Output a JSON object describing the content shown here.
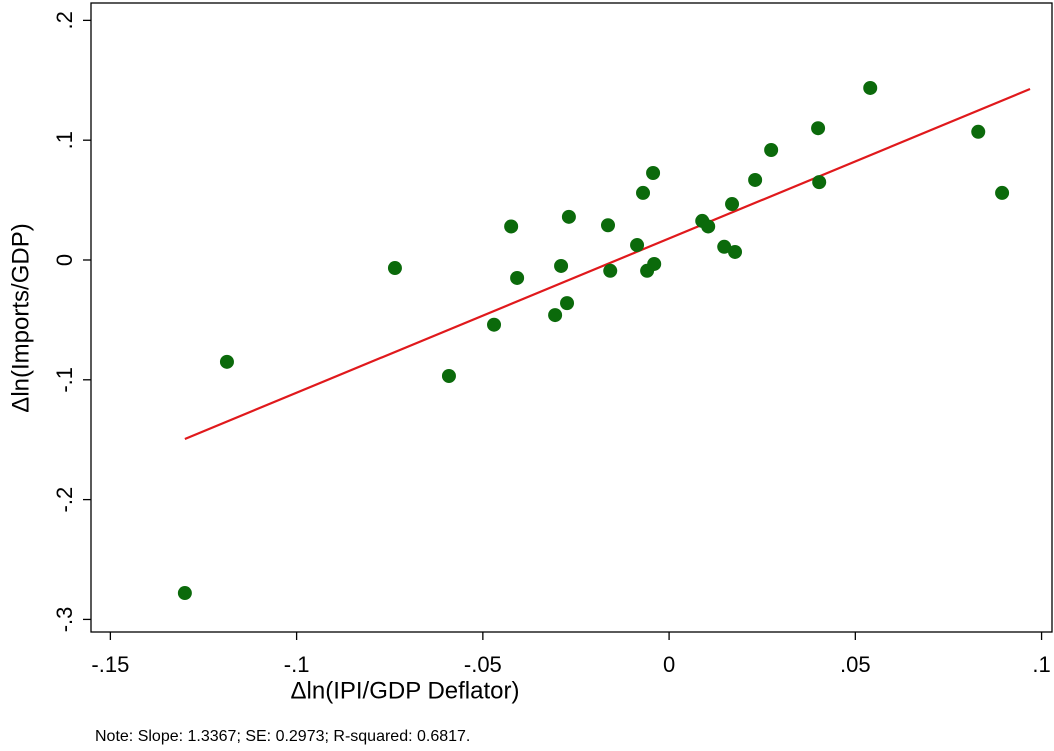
{
  "chart_data": {
    "type": "scatter",
    "xlabel": "Δln(IPI/GDP Deflator)",
    "ylabel": "Δln(Imports/GDP)",
    "note": "Note: Slope: 1.3367; SE: 0.2973; R-squared: 0.6817.",
    "x": [
      -0.13,
      -0.1187,
      -0.0736,
      -0.0591,
      -0.047,
      -0.0424,
      -0.0408,
      -0.0306,
      -0.029,
      -0.0274,
      -0.0269,
      -0.0164,
      -0.0158,
      -0.0086,
      -0.007,
      -0.0059,
      -0.0043,
      -0.004,
      0.0089,
      0.0105,
      0.0148,
      0.0169,
      0.0177,
      0.0231,
      0.0274,
      0.04,
      0.0403,
      0.054,
      0.083,
      0.0894
    ],
    "values": [
      -0.278,
      -0.085,
      -0.0067,
      -0.0968,
      -0.054,
      0.028,
      -0.015,
      -0.046,
      -0.005,
      -0.036,
      0.036,
      0.029,
      -0.009,
      0.0125,
      0.056,
      -0.009,
      0.0726,
      -0.0033,
      0.0326,
      0.028,
      0.011,
      0.0467,
      0.0067,
      0.0668,
      0.0918,
      0.11,
      0.065,
      0.1436,
      0.107,
      0.056
    ],
    "color": "#0b6a0b",
    "fit_line": {
      "x": [
        -0.13,
        0.0969
      ],
      "values": [
        -0.1494,
        0.1427
      ],
      "color": "#e0191c"
    },
    "xlim": [
      -0.1552,
      0.1028
    ],
    "ylim": [
      -0.3105,
      0.2145
    ],
    "xticks": [
      {
        "value": -0.15,
        "label": "-.15"
      },
      {
        "value": -0.1,
        "label": "-.1"
      },
      {
        "value": -0.05,
        "label": "-.05"
      },
      0,
      {
        "value": 0.05,
        "label": ".05"
      },
      {
        "value": 0.1,
        "label": ".1"
      }
    ],
    "yticks": [
      {
        "value": -0.3,
        "label": "-.3"
      },
      {
        "value": -0.2,
        "label": "-.2"
      },
      {
        "value": -0.1,
        "label": "-.1"
      },
      0,
      {
        "value": 0.1,
        "label": ".1"
      },
      {
        "value": 0.2,
        "label": ".2"
      }
    ],
    "grid": false
  }
}
